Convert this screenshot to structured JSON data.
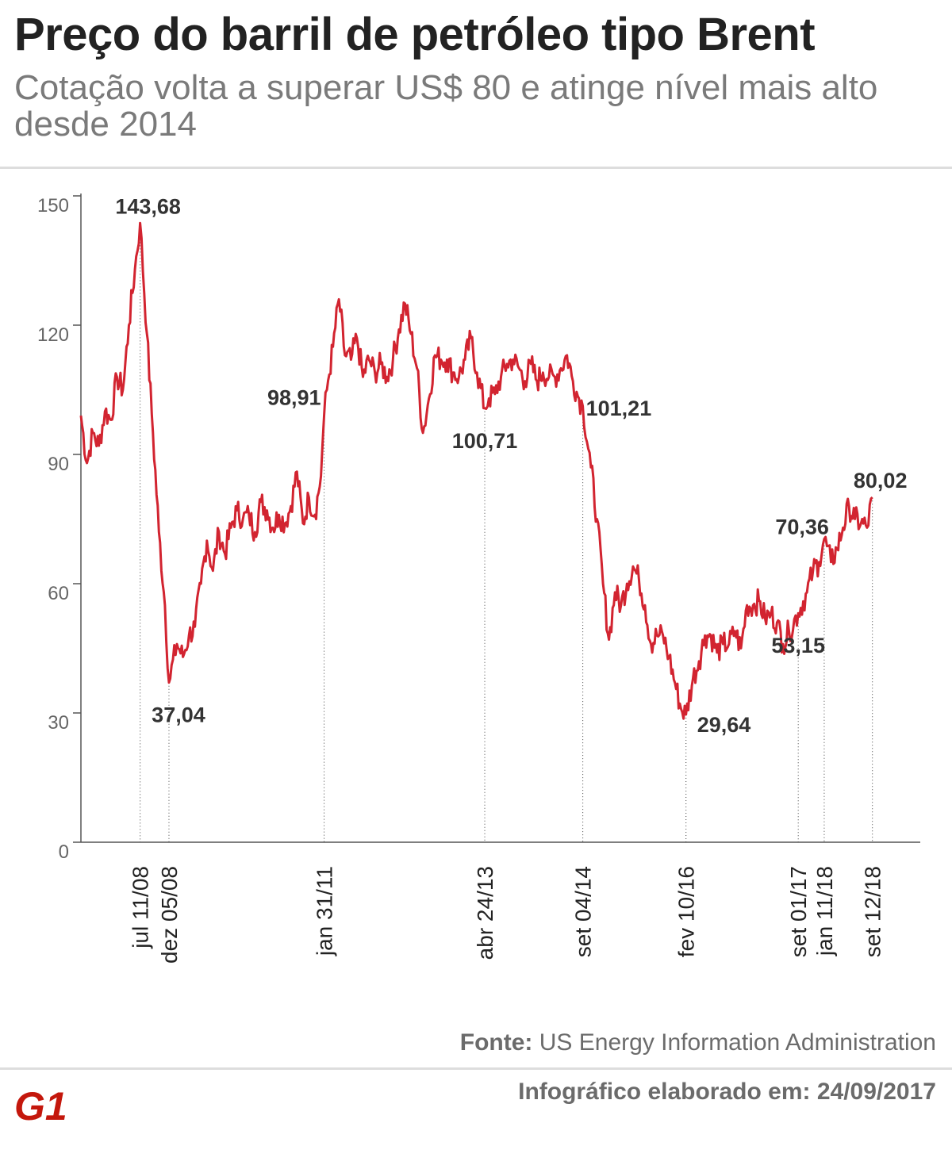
{
  "header": {
    "title": "Preço do barril de petróleo tipo Brent",
    "subtitle": "Cotação volta a superar US$ 80 e atinge nível mais alto desde 2014"
  },
  "footer": {
    "source_label": "Fonte:",
    "source_text": "US Energy Information Administration",
    "credit": "Infográfico elaborado em: 24/09/2017",
    "logo_text": "G1"
  },
  "colors": {
    "line": "#d22430",
    "logo": "#c4170c",
    "axis": "#555555"
  },
  "chart_data": {
    "type": "line",
    "title": "",
    "xlabel": "",
    "ylabel": "",
    "ylim": [
      0,
      150
    ],
    "yticks": [
      0,
      30,
      60,
      90,
      120,
      150
    ],
    "ytick_labels": [
      "0",
      "30",
      "60",
      "90",
      "120",
      "150"
    ],
    "x_range": [
      "2007-09",
      "2018-10"
    ],
    "grid": false,
    "series": [
      {
        "values": [
          [
            "2007-09",
            99
          ],
          [
            "2007-10",
            88
          ],
          [
            "2007-11",
            95
          ],
          [
            "2007-12",
            92
          ],
          [
            "2008-01",
            100
          ],
          [
            "2008-02",
            98
          ],
          [
            "2008-03",
            108
          ],
          [
            "2008-04",
            105
          ],
          [
            "2008-05",
            120
          ],
          [
            "2008-06",
            133
          ],
          [
            "2008-07-11",
            143.68
          ],
          [
            "2008-08",
            118
          ],
          [
            "2008-09",
            95
          ],
          [
            "2008-10",
            72
          ],
          [
            "2008-11",
            55
          ],
          [
            "2008-12-05",
            37.04
          ],
          [
            "2009-01",
            46
          ],
          [
            "2009-02",
            43
          ],
          [
            "2009-03",
            48
          ],
          [
            "2009-04",
            50
          ],
          [
            "2009-05",
            60
          ],
          [
            "2009-06",
            70
          ],
          [
            "2009-07",
            63
          ],
          [
            "2009-08",
            72
          ],
          [
            "2009-09",
            67
          ],
          [
            "2009-10",
            73
          ],
          [
            "2009-11",
            77
          ],
          [
            "2009-12",
            75
          ],
          [
            "2010-01",
            76
          ],
          [
            "2010-02",
            72
          ],
          [
            "2010-03",
            79
          ],
          [
            "2010-04",
            77
          ],
          [
            "2010-05",
            73
          ],
          [
            "2010-06",
            76
          ],
          [
            "2010-07",
            74
          ],
          [
            "2010-08",
            78
          ],
          [
            "2010-09",
            86
          ],
          [
            "2010-10",
            74
          ],
          [
            "2010-11",
            80
          ],
          [
            "2010-12",
            76
          ],
          [
            "2011-01",
            85
          ],
          [
            "2011-01-31",
            98.91
          ],
          [
            "2011-02",
            105
          ],
          [
            "2011-03",
            115
          ],
          [
            "2011-04",
            126
          ],
          [
            "2011-05",
            113
          ],
          [
            "2011-06",
            112
          ],
          [
            "2011-07",
            117
          ],
          [
            "2011-08",
            108
          ],
          [
            "2011-09",
            112
          ],
          [
            "2011-10",
            109
          ],
          [
            "2011-11",
            111
          ],
          [
            "2011-12",
            108
          ],
          [
            "2012-01",
            112
          ],
          [
            "2012-02",
            119
          ],
          [
            "2012-03",
            125
          ],
          [
            "2012-04",
            118
          ],
          [
            "2012-05",
            110
          ],
          [
            "2012-06",
            95
          ],
          [
            "2012-07",
            103
          ],
          [
            "2012-08",
            113
          ],
          [
            "2012-09",
            112
          ],
          [
            "2012-10",
            112
          ],
          [
            "2012-11",
            109
          ],
          [
            "2012-12",
            108
          ],
          [
            "2013-01",
            112
          ],
          [
            "2013-02",
            117
          ],
          [
            "2013-03",
            109
          ],
          [
            "2013-04-24",
            100.71
          ],
          [
            "2013-05",
            103
          ],
          [
            "2013-06",
            104
          ],
          [
            "2013-07",
            108
          ],
          [
            "2013-08",
            111
          ],
          [
            "2013-09",
            112
          ],
          [
            "2013-10",
            110
          ],
          [
            "2013-11",
            107
          ],
          [
            "2013-12",
            111
          ],
          [
            "2014-01",
            107
          ],
          [
            "2014-02",
            109
          ],
          [
            "2014-03",
            108
          ],
          [
            "2014-04",
            108
          ],
          [
            "2014-05",
            110
          ],
          [
            "2014-06",
            113
          ],
          [
            "2014-07",
            107
          ],
          [
            "2014-08",
            103
          ],
          [
            "2014-09-04",
            101.21
          ],
          [
            "2014-10",
            87
          ],
          [
            "2014-11",
            75
          ],
          [
            "2014-12",
            60
          ],
          [
            "2015-01",
            47
          ],
          [
            "2015-02",
            58
          ],
          [
            "2015-03",
            55
          ],
          [
            "2015-04",
            60
          ],
          [
            "2015-05",
            64
          ],
          [
            "2015-06",
            61
          ],
          [
            "2015-07",
            55
          ],
          [
            "2015-08",
            46
          ],
          [
            "2015-09",
            48
          ],
          [
            "2015-10",
            48
          ],
          [
            "2015-11",
            43
          ],
          [
            "2015-12",
            37
          ],
          [
            "2016-01",
            31
          ],
          [
            "2016-02-10",
            29.64
          ],
          [
            "2016-03",
            38
          ],
          [
            "2016-04",
            42
          ],
          [
            "2016-05",
            48
          ],
          [
            "2016-06",
            48
          ],
          [
            "2016-07",
            44
          ],
          [
            "2016-08",
            46
          ],
          [
            "2016-09",
            46
          ],
          [
            "2016-10",
            49
          ],
          [
            "2016-11",
            45
          ],
          [
            "2016-12",
            55
          ],
          [
            "2017-01",
            55
          ],
          [
            "2017-02",
            56
          ],
          [
            "2017-03",
            52
          ],
          [
            "2017-04",
            53
          ],
          [
            "2017-05",
            51
          ],
          [
            "2017-06",
            46
          ],
          [
            "2017-07",
            49
          ],
          [
            "2017-09-01",
            53.15
          ],
          [
            "2017-10",
            58
          ],
          [
            "2017-11",
            63
          ],
          [
            "2017-12",
            65
          ],
          [
            "2018-01-11",
            70.36
          ],
          [
            "2018-02",
            65
          ],
          [
            "2018-03",
            68
          ],
          [
            "2018-04",
            73
          ],
          [
            "2018-05",
            78
          ],
          [
            "2018-06",
            75
          ],
          [
            "2018-07",
            74
          ],
          [
            "2018-08",
            73
          ],
          [
            "2018-09-12",
            80.02
          ]
        ]
      }
    ],
    "annotations": [
      {
        "date": "2008-07-11",
        "value": 143.68,
        "label": "143,68",
        "tick_label": "jul 11/08",
        "pos": "above"
      },
      {
        "date": "2008-12-05",
        "value": 37.04,
        "label": "37,04",
        "tick_label": "dez 05/08",
        "pos": "below"
      },
      {
        "date": "2011-01-31",
        "value": 98.91,
        "label": "98,91",
        "tick_label": "jan 31/11",
        "pos": "left"
      },
      {
        "date": "2013-04-24",
        "value": 100.71,
        "label": "100,71",
        "tick_label": "abr 24/13",
        "pos": "below"
      },
      {
        "date": "2014-09-04",
        "value": 101.21,
        "label": "101,21",
        "tick_label": "set 04/14",
        "pos": "right"
      },
      {
        "date": "2016-02-10",
        "value": 29.64,
        "label": "29,64",
        "tick_label": "fev 10/16",
        "pos": "right"
      },
      {
        "date": "2017-09-01",
        "value": 53.15,
        "label": "53,15",
        "tick_label": "set 01/17",
        "pos": "below"
      },
      {
        "date": "2018-01-11",
        "value": 70.36,
        "label": "70,36",
        "tick_label": "jan 11/18",
        "pos": "left"
      },
      {
        "date": "2018-09-12",
        "value": 80.02,
        "label": "80,02",
        "tick_label": "set 12/18",
        "pos": "above"
      }
    ]
  }
}
